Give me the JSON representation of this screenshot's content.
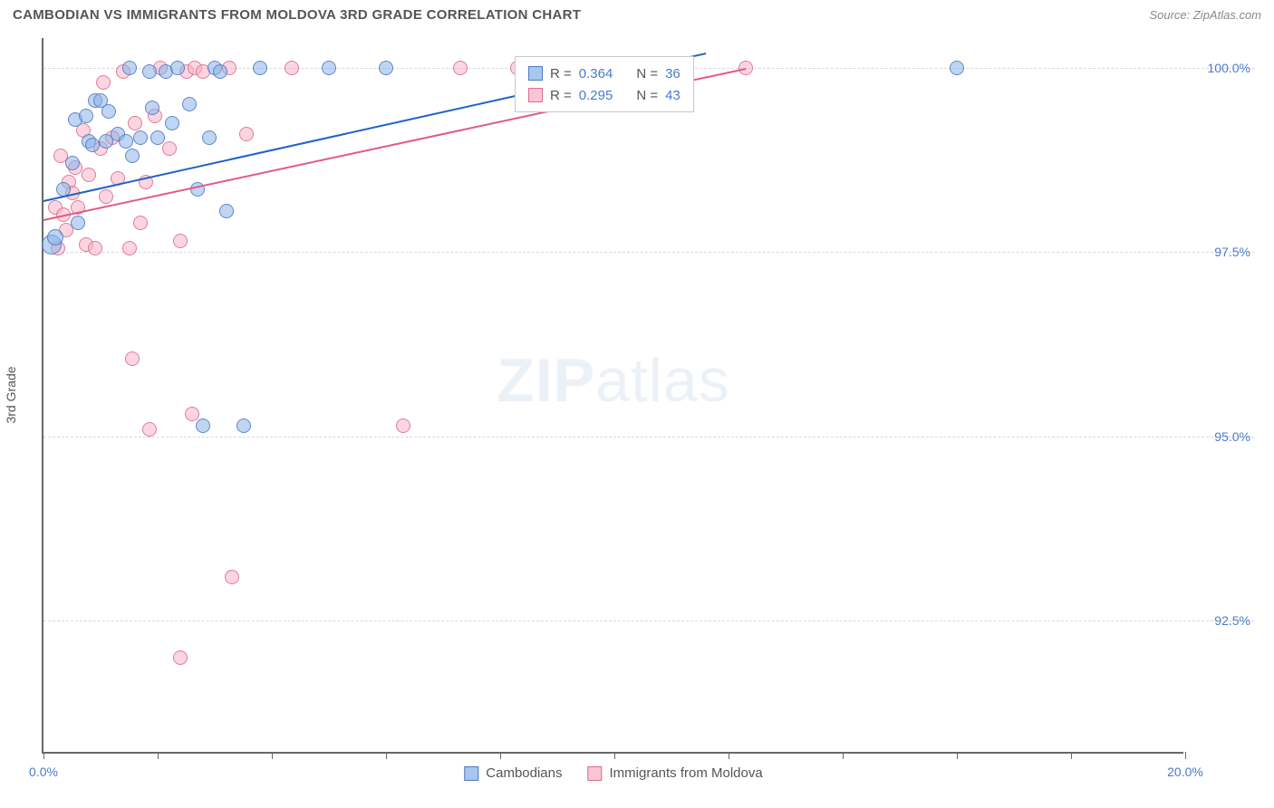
{
  "header": {
    "title": "CAMBODIAN VS IMMIGRANTS FROM MOLDOVA 3RD GRADE CORRELATION CHART",
    "source": "Source: ZipAtlas.com"
  },
  "chart": {
    "type": "scatter",
    "ylabel": "3rd Grade",
    "watermark_a": "ZIP",
    "watermark_b": "atlas",
    "xlim": [
      0,
      20
    ],
    "ylim": [
      90.7,
      100.4
    ],
    "x_ticks": [
      0,
      2,
      4,
      6,
      8,
      10,
      12,
      14,
      16,
      18,
      20
    ],
    "x_tick_labels": {
      "0": "0.0%",
      "20": "20.0%"
    },
    "y_gridlines": [
      92.5,
      95.0,
      97.5,
      100.0
    ],
    "y_tick_labels": [
      "92.5%",
      "95.0%",
      "97.5%",
      "100.0%"
    ],
    "background_color": "#ffffff",
    "grid_color": "#d8d8d8",
    "axis_color": "#686868",
    "series": {
      "blue": {
        "label": "Cambodians",
        "fill": "rgba(139,179,232,0.55)",
        "stroke": "#4f7ac3",
        "trend_color": "#1f63c7",
        "R": 0.364,
        "N": 36,
        "trend": {
          "x1": 0,
          "y1": 98.2,
          "x2": 11.6,
          "y2": 100.2
        },
        "points": [
          {
            "x": 0.15,
            "y": 97.6,
            "r": 11
          },
          {
            "x": 0.2,
            "y": 97.7,
            "r": 9
          },
          {
            "x": 0.35,
            "y": 98.35,
            "r": 8
          },
          {
            "x": 0.5,
            "y": 98.7,
            "r": 8
          },
          {
            "x": 0.55,
            "y": 99.3,
            "r": 8
          },
          {
            "x": 0.6,
            "y": 97.9,
            "r": 8
          },
          {
            "x": 0.75,
            "y": 99.35,
            "r": 8
          },
          {
            "x": 0.8,
            "y": 99.0,
            "r": 8
          },
          {
            "x": 0.85,
            "y": 98.95,
            "r": 8
          },
          {
            "x": 0.9,
            "y": 99.55,
            "r": 8
          },
          {
            "x": 1.0,
            "y": 99.55,
            "r": 8
          },
          {
            "x": 1.1,
            "y": 99.0,
            "r": 8
          },
          {
            "x": 1.15,
            "y": 99.4,
            "r": 8
          },
          {
            "x": 1.3,
            "y": 99.1,
            "r": 8
          },
          {
            "x": 1.45,
            "y": 99.0,
            "r": 8
          },
          {
            "x": 1.5,
            "y": 100.0,
            "r": 8
          },
          {
            "x": 1.55,
            "y": 98.8,
            "r": 8
          },
          {
            "x": 1.7,
            "y": 99.05,
            "r": 8
          },
          {
            "x": 1.85,
            "y": 99.95,
            "r": 8
          },
          {
            "x": 1.9,
            "y": 99.45,
            "r": 8
          },
          {
            "x": 2.0,
            "y": 99.05,
            "r": 8
          },
          {
            "x": 2.15,
            "y": 99.95,
            "r": 8
          },
          {
            "x": 2.25,
            "y": 99.25,
            "r": 8
          },
          {
            "x": 2.35,
            "y": 100.0,
            "r": 8
          },
          {
            "x": 2.55,
            "y": 99.5,
            "r": 8
          },
          {
            "x": 2.7,
            "y": 98.35,
            "r": 8
          },
          {
            "x": 2.9,
            "y": 99.05,
            "r": 8
          },
          {
            "x": 3.0,
            "y": 100.0,
            "r": 8
          },
          {
            "x": 3.1,
            "y": 99.95,
            "r": 8
          },
          {
            "x": 3.2,
            "y": 98.05,
            "r": 8
          },
          {
            "x": 3.8,
            "y": 100.0,
            "r": 8
          },
          {
            "x": 5.0,
            "y": 100.0,
            "r": 8
          },
          {
            "x": 6.0,
            "y": 100.0,
            "r": 8
          },
          {
            "x": 2.8,
            "y": 95.15,
            "r": 8
          },
          {
            "x": 3.5,
            "y": 95.15,
            "r": 8
          },
          {
            "x": 16.0,
            "y": 100.0,
            "r": 8
          }
        ]
      },
      "pink": {
        "label": "Immigrants from Moldova",
        "fill": "rgba(247,178,198,0.55)",
        "stroke": "#dc6e8c",
        "trend_color": "#e05a88",
        "R": 0.295,
        "N": 43,
        "trend": {
          "x1": 0,
          "y1": 97.95,
          "x2": 12.3,
          "y2": 100.0
        },
        "points": [
          {
            "x": 0.2,
            "y": 98.1,
            "r": 8
          },
          {
            "x": 0.25,
            "y": 97.55,
            "r": 8
          },
          {
            "x": 0.3,
            "y": 98.8,
            "r": 8
          },
          {
            "x": 0.35,
            "y": 98.0,
            "r": 8
          },
          {
            "x": 0.4,
            "y": 97.8,
            "r": 8
          },
          {
            "x": 0.45,
            "y": 98.45,
            "r": 8
          },
          {
            "x": 0.5,
            "y": 98.3,
            "r": 8
          },
          {
            "x": 0.55,
            "y": 98.65,
            "r": 8
          },
          {
            "x": 0.6,
            "y": 98.1,
            "r": 8
          },
          {
            "x": 0.7,
            "y": 99.15,
            "r": 8
          },
          {
            "x": 0.75,
            "y": 97.6,
            "r": 8
          },
          {
            "x": 0.8,
            "y": 98.55,
            "r": 8
          },
          {
            "x": 0.9,
            "y": 97.55,
            "r": 8
          },
          {
            "x": 1.0,
            "y": 98.9,
            "r": 8
          },
          {
            "x": 1.05,
            "y": 99.8,
            "r": 8
          },
          {
            "x": 1.1,
            "y": 98.25,
            "r": 8
          },
          {
            "x": 1.2,
            "y": 99.05,
            "r": 8
          },
          {
            "x": 1.3,
            "y": 98.5,
            "r": 8
          },
          {
            "x": 1.4,
            "y": 99.95,
            "r": 8
          },
          {
            "x": 1.5,
            "y": 97.55,
            "r": 8
          },
          {
            "x": 1.6,
            "y": 99.25,
            "r": 8
          },
          {
            "x": 1.7,
            "y": 97.9,
            "r": 8
          },
          {
            "x": 1.8,
            "y": 98.45,
            "r": 8
          },
          {
            "x": 1.95,
            "y": 99.35,
            "r": 8
          },
          {
            "x": 2.05,
            "y": 100.0,
            "r": 8
          },
          {
            "x": 2.2,
            "y": 98.9,
            "r": 8
          },
          {
            "x": 2.4,
            "y": 97.65,
            "r": 8
          },
          {
            "x": 2.5,
            "y": 99.95,
            "r": 8
          },
          {
            "x": 2.65,
            "y": 100.0,
            "r": 8
          },
          {
            "x": 2.8,
            "y": 99.95,
            "r": 8
          },
          {
            "x": 3.25,
            "y": 100.0,
            "r": 8
          },
          {
            "x": 3.55,
            "y": 99.1,
            "r": 8
          },
          {
            "x": 4.35,
            "y": 100.0,
            "r": 8
          },
          {
            "x": 7.3,
            "y": 100.0,
            "r": 8
          },
          {
            "x": 8.3,
            "y": 100.0,
            "r": 8
          },
          {
            "x": 9.65,
            "y": 100.0,
            "r": 8
          },
          {
            "x": 12.3,
            "y": 100.0,
            "r": 8
          },
          {
            "x": 1.55,
            "y": 96.05,
            "r": 8
          },
          {
            "x": 2.6,
            "y": 95.3,
            "r": 8
          },
          {
            "x": 1.85,
            "y": 95.1,
            "r": 8
          },
          {
            "x": 2.4,
            "y": 92.0,
            "r": 8
          },
          {
            "x": 3.3,
            "y": 93.1,
            "r": 8
          },
          {
            "x": 6.3,
            "y": 95.15,
            "r": 8
          }
        ]
      }
    },
    "legend_stats": [
      {
        "swatch": "blue",
        "r_label": "R =",
        "r_val": "0.364",
        "n_label": "N =",
        "n_val": "36"
      },
      {
        "swatch": "pink",
        "r_label": "R =",
        "r_val": "0.295",
        "n_label": "N =",
        "n_val": "43"
      }
    ],
    "bottom_legend": [
      {
        "swatch": "blue",
        "label": "Cambodians"
      },
      {
        "swatch": "pink",
        "label": "Immigrants from Moldova"
      }
    ]
  }
}
